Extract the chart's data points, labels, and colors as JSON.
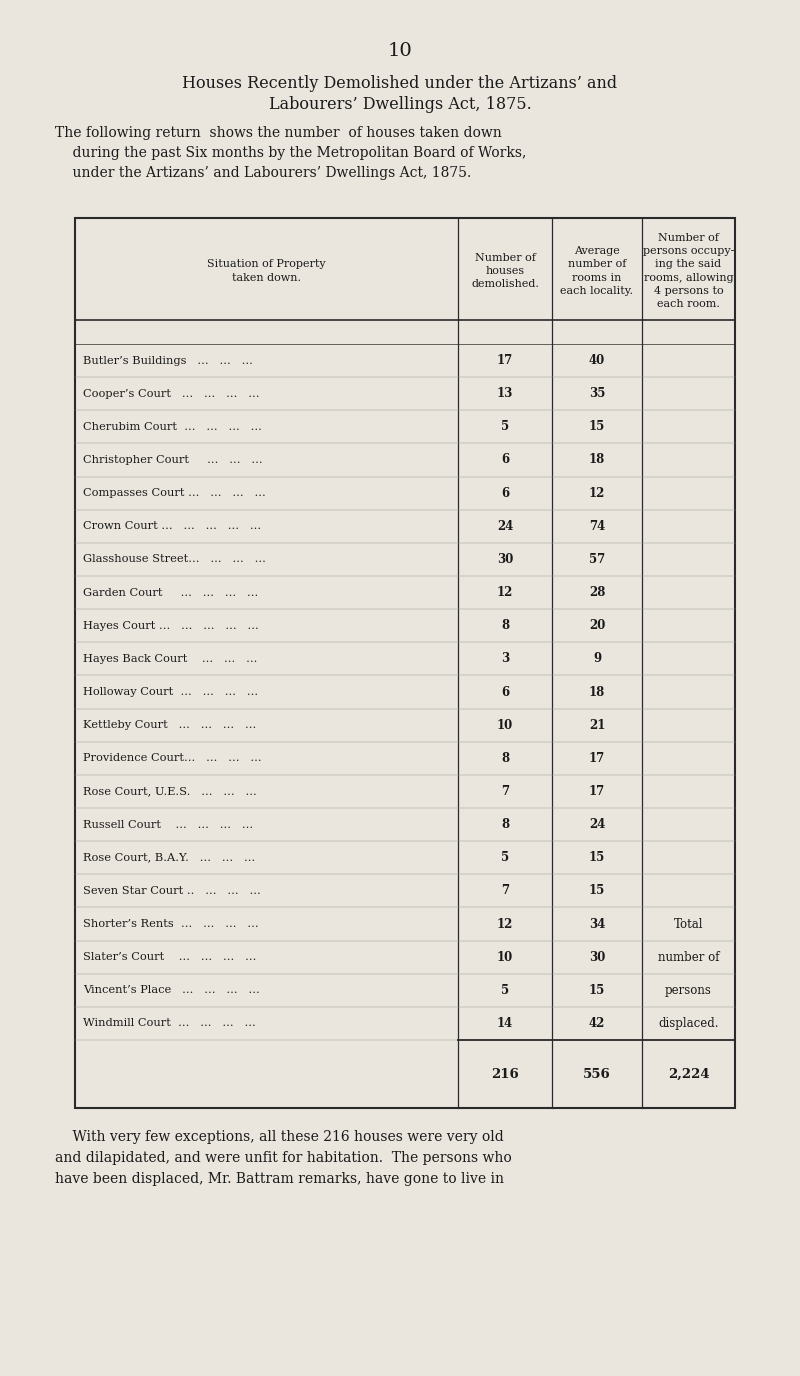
{
  "page_number": "10",
  "title_line1": "Houses Recently Demolished under the Artizans’ and",
  "title_line2": "Labourers’ Dwellings Act, 1875.",
  "intro_text_lines": [
    "The following return  shows the number  of houses taken down",
    "    during the past Six months by the Metropolitan Board of Works,",
    "    under the Artizans’ and Labourers’ Dwellings Act, 1875."
  ],
  "col_headers": [
    "Situation of Property\ntaken down.",
    "Number of\nhouses\ndemolished.",
    "Average\nnumber of\nrooms in\neach locality.",
    "Number of\npersons occupy-\ning the said\nrooms, allowing\n4 persons to\neach room."
  ],
  "rows": [
    [
      "Butler’s Buildings   ...   ...   ...",
      "17",
      "40",
      ""
    ],
    [
      "Cooper’s Court   ...   ...   ...   ...",
      "13",
      "35",
      ""
    ],
    [
      "Cherubim Court  ...   ...   ...   ...",
      "5",
      "15",
      ""
    ],
    [
      "Christopher Court     ...   ...   ...",
      "6",
      "18",
      ""
    ],
    [
      "Compasses Court ...   ...   ...   ...",
      "6",
      "12",
      ""
    ],
    [
      "Crown Court ...   ...   ...   ...   ...",
      "24",
      "74",
      ""
    ],
    [
      "Glasshouse Street...   ...   ...   ...",
      "30",
      "57",
      ""
    ],
    [
      "Garden Court     ...   ...   ...   ...",
      "12",
      "28",
      ""
    ],
    [
      "Hayes Court ...   ...   ...   ...   ...",
      "8",
      "20",
      ""
    ],
    [
      "Hayes Back Court    ...   ...   ...",
      "3",
      "9",
      ""
    ],
    [
      "Holloway Court  ...   ...   ...   ...",
      "6",
      "18",
      ""
    ],
    [
      "Kettleby Court   ...   ...   ...   ...",
      "10",
      "21",
      ""
    ],
    [
      "Providence Court...   ...   ...   ...",
      "8",
      "17",
      ""
    ],
    [
      "Rose Court, U.E.S.   ...   ...   ...",
      "7",
      "17",
      ""
    ],
    [
      "Russell Court    ...   ...   ...   ...",
      "8",
      "24",
      ""
    ],
    [
      "Rose Court, B.A.Y.   ...   ...   ...",
      "5",
      "15",
      ""
    ],
    [
      "Seven Star Court ..   ...   ...   ...",
      "7",
      "15",
      ""
    ],
    [
      "Shorter’s Rents  ...   ...   ...   ...",
      "12",
      "34",
      "Total"
    ],
    [
      "Slater’s Court    ...   ...   ...   ...",
      "10",
      "30",
      "number of"
    ],
    [
      "Vincent’s Place   ...   ...   ...   ...",
      "5",
      "15",
      "persons"
    ],
    [
      "Windmill Court  ...   ...   ...   ...",
      "14",
      "42",
      "displaced."
    ]
  ],
  "totals": [
    "",
    "216",
    "556",
    "2,224"
  ],
  "footer_text_lines": [
    "    With very few exceptions, all these 216 houses were very old",
    "and dilapidated, and were unfit for habitation.  The persons who",
    "have been displaced, Mr. Battram remarks, have gone to live in"
  ],
  "bg_color": "#eae6de",
  "text_color": "#1a1a1a",
  "line_color": "#2a2a2a"
}
